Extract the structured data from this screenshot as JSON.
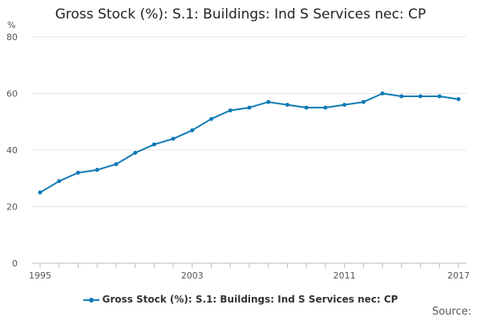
{
  "chart_data": {
    "type": "line",
    "title": "Gross Stock (%): S.1: Buildings: Ind S Services nec: CP",
    "ylabel": "%",
    "xlabel": "",
    "ylim": [
      0,
      80
    ],
    "yticks": [
      0,
      20,
      40,
      60,
      80
    ],
    "xlim": [
      1995,
      2017
    ],
    "xtick_labels": [
      "1995",
      "2003",
      "2011",
      "2017"
    ],
    "grid": "horizontal",
    "legend_position": "bottom",
    "series": [
      {
        "name": "Gross Stock (%): S.1: Buildings: Ind S Services nec: CP",
        "color": "#0f7ab5",
        "x": [
          1995,
          1996,
          1997,
          1998,
          1999,
          2000,
          2001,
          2002,
          2003,
          2004,
          2005,
          2006,
          2007,
          2008,
          2009,
          2010,
          2011,
          2012,
          2013,
          2014,
          2015,
          2016,
          2017
        ],
        "values": [
          25,
          29,
          32,
          33,
          35,
          39,
          42,
          44,
          47,
          51,
          54,
          55,
          57,
          56,
          55,
          55,
          56,
          57,
          60,
          59,
          59,
          59,
          58
        ]
      }
    ]
  },
  "source_label": "Source:"
}
